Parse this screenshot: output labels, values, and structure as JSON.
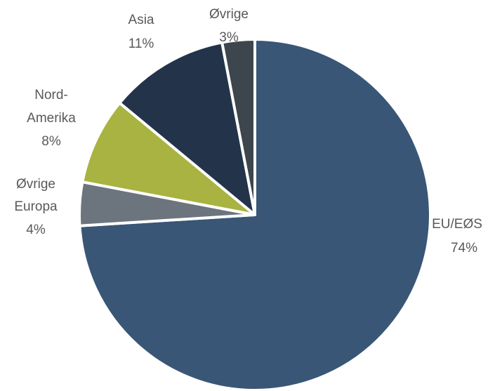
{
  "chart_data": {
    "type": "pie",
    "title": "",
    "slices": [
      {
        "label": "EU/EØS",
        "value": 74,
        "value_label": "74%",
        "color": "#3a5676"
      },
      {
        "label": "Øvrige Europa",
        "label_lines": [
          "Øvrige",
          "Europa"
        ],
        "value": 4,
        "value_label": "4%",
        "color": "#6c757e"
      },
      {
        "label": "Nord-Amerika",
        "label_lines": [
          "Nord-",
          "Amerika"
        ],
        "value": 8,
        "value_label": "8%",
        "color": "#a8b341"
      },
      {
        "label": "Asia",
        "label_lines": [
          "Asia"
        ],
        "value": 11,
        "value_label": "11%",
        "color": "#23334a"
      },
      {
        "label": "Øvrige",
        "label_lines": [
          "Øvrige"
        ],
        "value": 3,
        "value_label": "3%",
        "color": "#3d454d"
      }
    ],
    "start": "top, clockwise",
    "legend": "none"
  }
}
